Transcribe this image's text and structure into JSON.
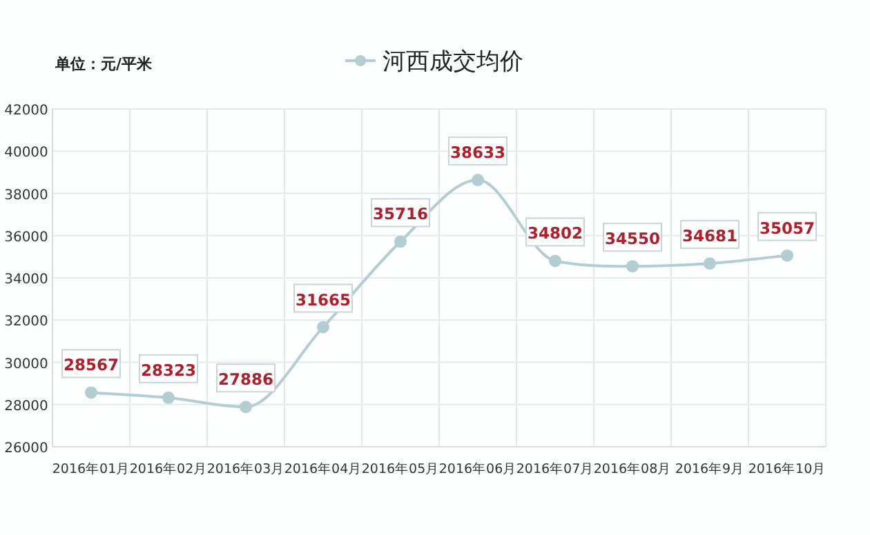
{
  "chart_data": {
    "type": "line",
    "ylabel": "单位：元/平米",
    "categories": [
      "2016年01月",
      "2016年02月",
      "2016年03月",
      "2016年04月",
      "2016年05月",
      "2016年06月",
      "2016年07月",
      "2016年08月",
      "2016年9月",
      "2016年10月"
    ],
    "series": [
      {
        "name": "河西成交均价",
        "color": "#b3cdd3",
        "values": [
          28567,
          28323,
          27886,
          31665,
          35716,
          38633,
          34802,
          34550,
          34681,
          35057
        ]
      }
    ],
    "ylim": [
      26000,
      42000
    ],
    "yticks": [
      26000,
      28000,
      30000,
      32000,
      34000,
      36000,
      38000,
      40000,
      42000
    ],
    "grid": true,
    "legend": "top",
    "marker": "circle",
    "line_style": "solid",
    "data_labels": true
  }
}
